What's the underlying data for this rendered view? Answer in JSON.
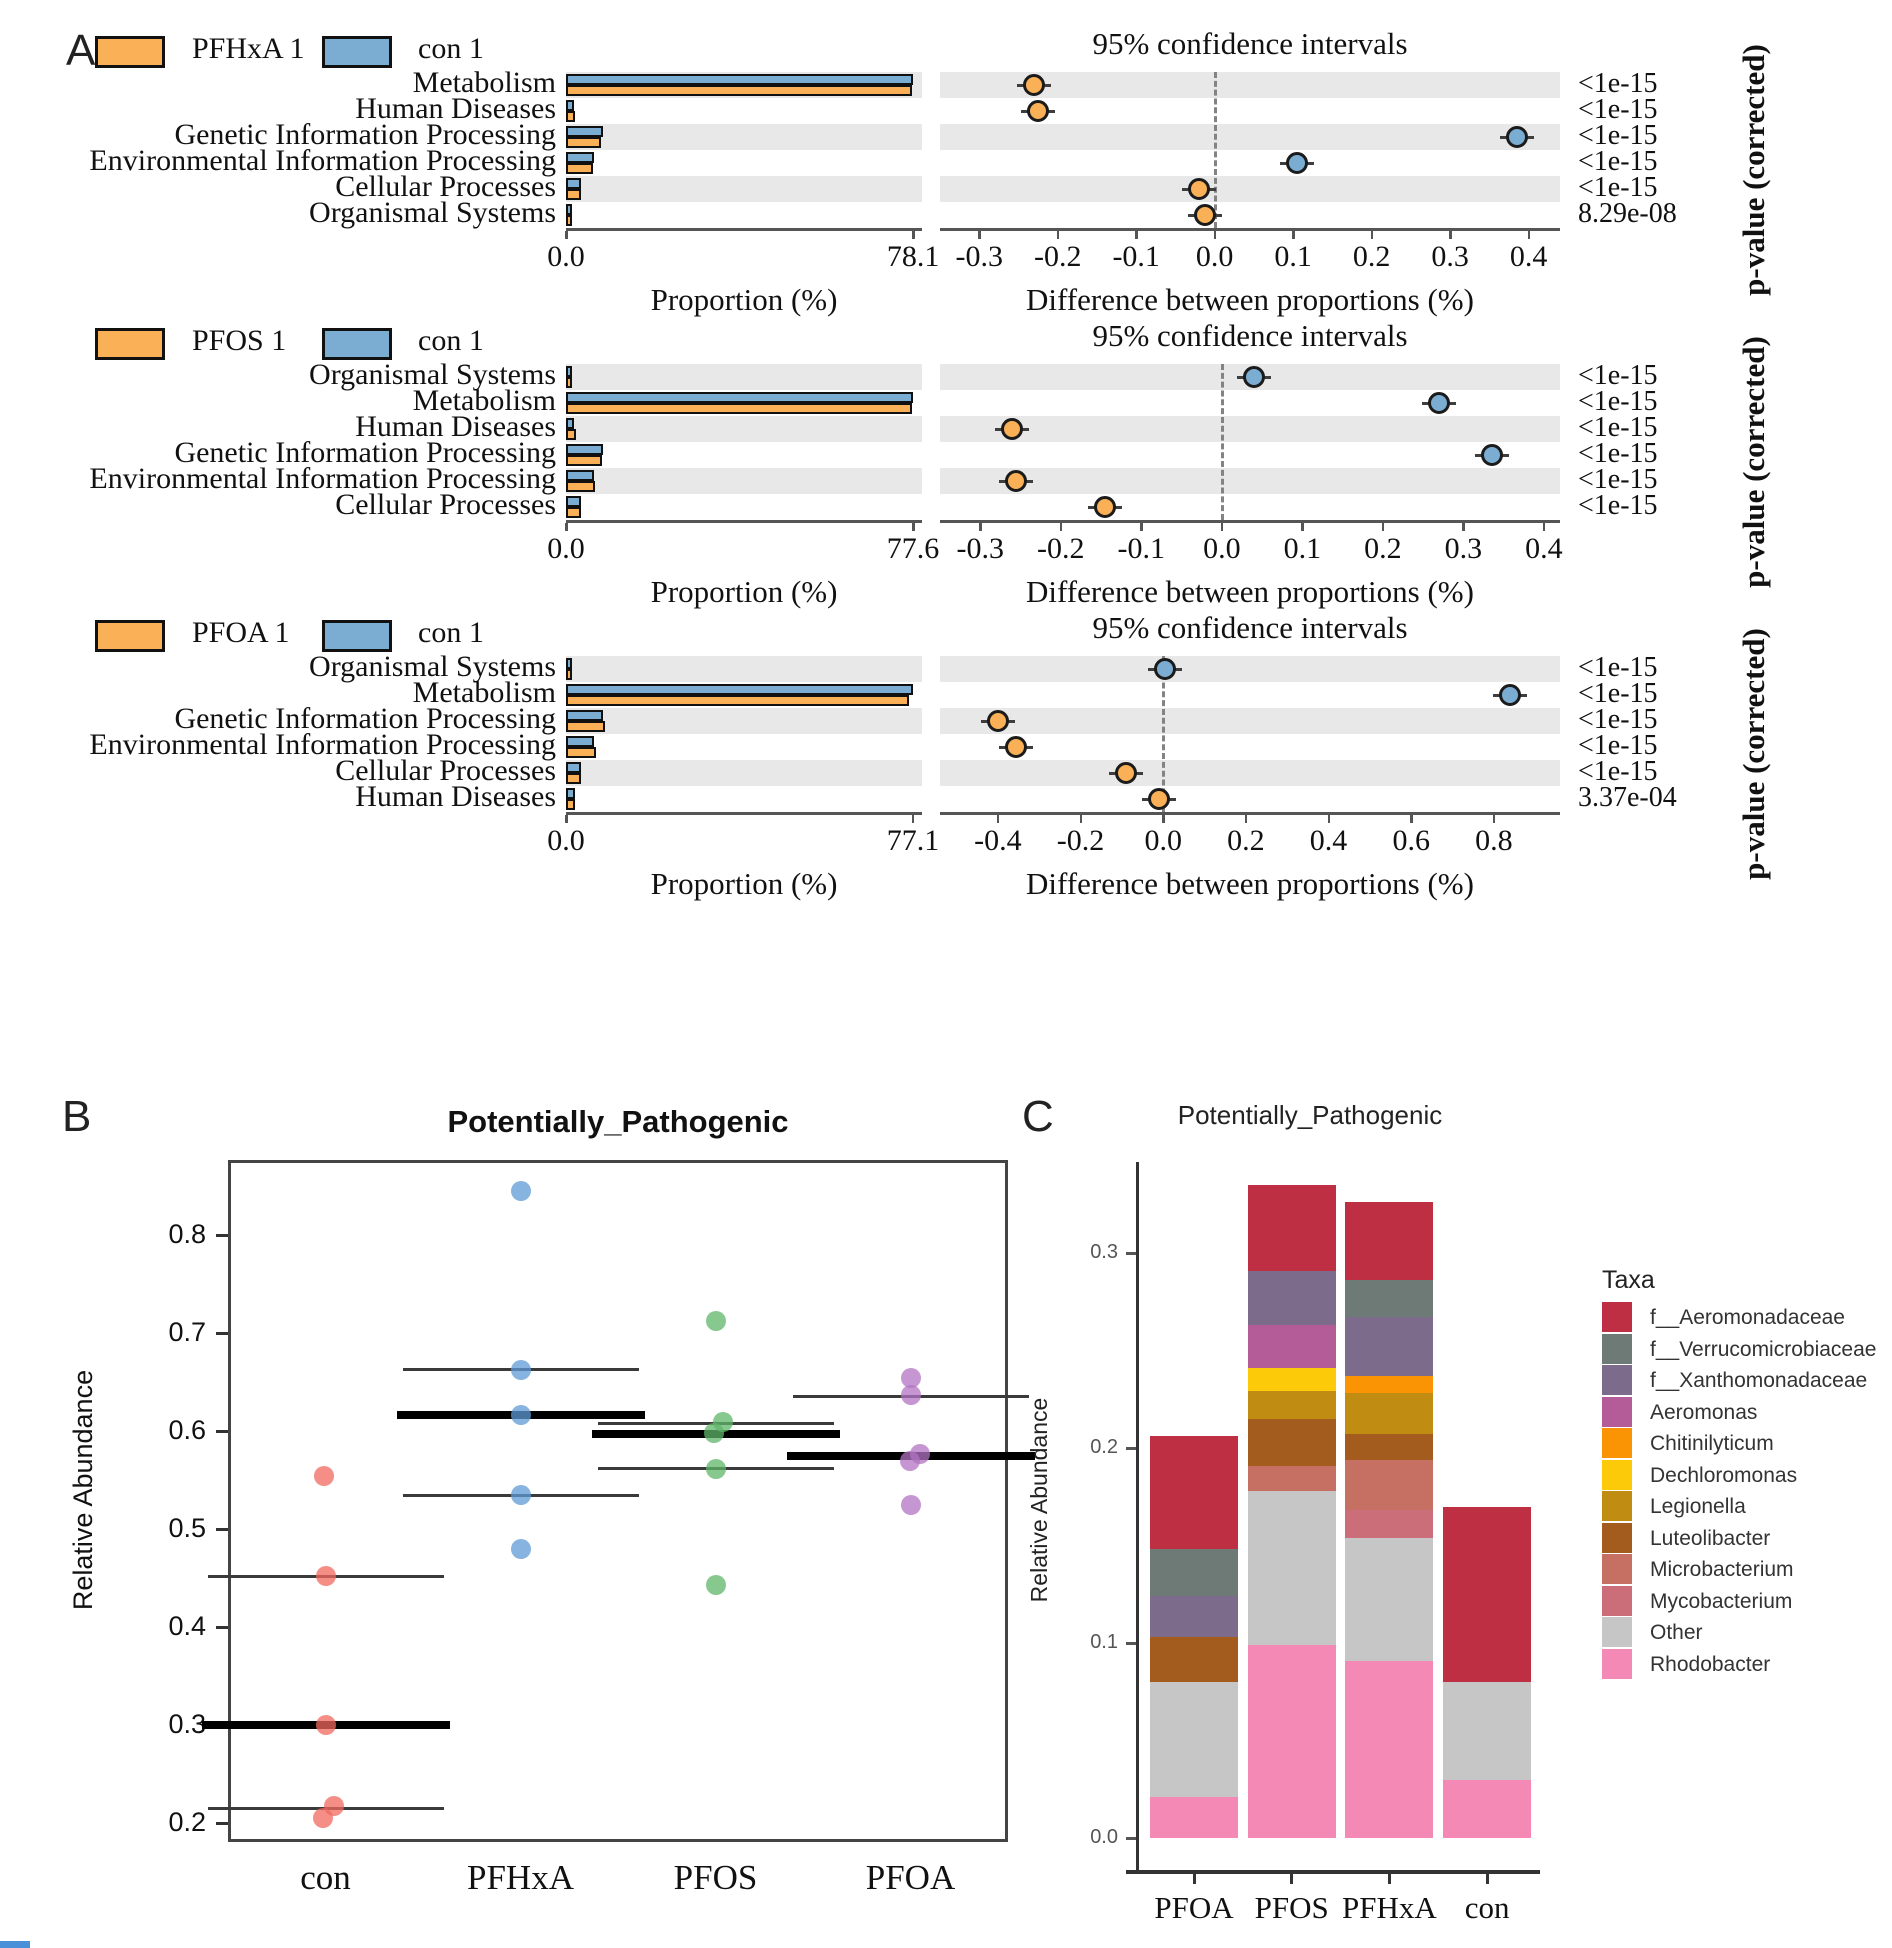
{
  "figure": {
    "panel_labels": {
      "a": "A",
      "b": "B",
      "c": "C"
    },
    "colors_a": {
      "treatment": "#F9B057",
      "control": "#7BADD3",
      "band": "#E8E8E8"
    }
  },
  "chart_data": [
    {
      "id": "A1",
      "type": "bar+dot",
      "treatment_label": "PFHxA 1",
      "control_label": "con 1",
      "ci_title": "95% confidence intervals",
      "prop_title": "Proportion (%)",
      "diff_title": "Difference between proportions (%)",
      "pvalue_label": "p-value (corrected)",
      "categories": [
        "Metabolism",
        "Human Diseases",
        "Genetic Information Processing",
        "Environmental Information Processing",
        "Cellular Processes",
        "Organismal Systems"
      ],
      "control_props": [
        78.1,
        1.9,
        8.3,
        6.2,
        3.3,
        1.3
      ],
      "treatment_props": [
        77.9,
        2.1,
        7.9,
        6.1,
        3.3,
        1.3
      ],
      "diffs": [
        -0.23,
        -0.225,
        0.385,
        0.105,
        -0.02,
        -0.012
      ],
      "enriched": [
        "treatment",
        "treatment",
        "control",
        "control",
        "treatment",
        "treatment"
      ],
      "pvalues": [
        "<1e-15",
        "<1e-15",
        "<1e-15",
        "<1e-15",
        "<1e-15",
        "8.29e-08"
      ],
      "prop_tick_labels": [
        "0.0",
        "78.1"
      ],
      "prop_tick_values": [
        0,
        78.1
      ],
      "prop_scale_max": 80.1,
      "diff_ticks": [
        -0.3,
        -0.2,
        -0.1,
        0.0,
        0.1,
        0.2,
        0.3,
        0.4
      ],
      "diff_range": [
        -0.35,
        0.44
      ]
    },
    {
      "id": "A2",
      "type": "bar+dot",
      "treatment_label": "PFOS 1",
      "control_label": "con 1",
      "ci_title": "95% confidence intervals",
      "prop_title": "Proportion (%)",
      "diff_title": "Difference between proportions (%)",
      "pvalue_label": "p-value (corrected)",
      "categories": [
        "Organismal Systems",
        "Metabolism",
        "Human Diseases",
        "Genetic Information Processing",
        "Environmental Information Processing",
        "Cellular Processes"
      ],
      "control_props": [
        1.3,
        77.6,
        1.9,
        8.3,
        6.2,
        3.3
      ],
      "treatment_props": [
        1.25,
        77.3,
        2.2,
        8.0,
        6.5,
        3.45
      ],
      "diffs": [
        0.04,
        0.27,
        -0.26,
        0.335,
        -0.255,
        -0.145
      ],
      "enriched": [
        "control",
        "control",
        "treatment",
        "control",
        "treatment",
        "treatment"
      ],
      "pvalues": [
        "<1e-15",
        "<1e-15",
        "<1e-15",
        "<1e-15",
        "<1e-15",
        "<1e-15"
      ],
      "prop_tick_labels": [
        "0.0",
        "77.6"
      ],
      "prop_tick_values": [
        0,
        77.6
      ],
      "prop_scale_max": 79.6,
      "diff_ticks": [
        -0.3,
        -0.2,
        -0.1,
        0.0,
        0.1,
        0.2,
        0.3,
        0.4
      ],
      "diff_range": [
        -0.35,
        0.42
      ]
    },
    {
      "id": "A3",
      "type": "bar+dot",
      "treatment_label": "PFOA 1",
      "control_label": "con 1",
      "ci_title": "95% confidence intervals",
      "prop_title": "Proportion (%)",
      "diff_title": "Difference between proportions (%)",
      "pvalue_label": "p-value (corrected)",
      "categories": [
        "Organismal Systems",
        "Metabolism",
        "Genetic Information Processing",
        "Environmental Information Processing",
        "Cellular Processes",
        "Human Diseases"
      ],
      "control_props": [
        1.3,
        77.1,
        8.3,
        6.2,
        3.3,
        1.9
      ],
      "treatment_props": [
        1.3,
        76.3,
        8.7,
        6.6,
        3.4,
        1.9
      ],
      "diffs": [
        0.005,
        0.84,
        -0.4,
        -0.355,
        -0.09,
        -0.01
      ],
      "enriched": [
        "control",
        "control",
        "treatment",
        "treatment",
        "treatment",
        "treatment"
      ],
      "pvalues": [
        "<1e-15",
        "<1e-15",
        "<1e-15",
        "<1e-15",
        "<1e-15",
        "3.37e-04"
      ],
      "prop_tick_labels": [
        "0.0",
        "77.1"
      ],
      "prop_tick_values": [
        0,
        77.1
      ],
      "prop_scale_max": 79.1,
      "diff_ticks": [
        -0.4,
        -0.2,
        0.0,
        0.2,
        0.4,
        0.6,
        0.8
      ],
      "diff_range": [
        -0.54,
        0.96
      ]
    },
    {
      "id": "B",
      "type": "scatter",
      "title": "Potentially_Pathogenic",
      "ylabel": "Relative Abundance",
      "yticks": [
        0.2,
        0.3,
        0.4,
        0.5,
        0.6,
        0.7,
        0.8
      ],
      "ylim": [
        0.181,
        0.877
      ],
      "groups": [
        {
          "name": "con",
          "color": "#F0685E",
          "points": [
            {
              "y": 0.555,
              "dx": -2
            },
            {
              "y": 0.452,
              "dx": 0
            },
            {
              "y": 0.3,
              "dx": 0
            },
            {
              "y": 0.218,
              "dx": 8
            },
            {
              "y": 0.205,
              "dx": -3
            }
          ],
          "lines": [
            {
              "y": 0.452,
              "style": "thin"
            },
            {
              "y": 0.3,
              "style": "thick"
            },
            {
              "y": 0.215,
              "style": "thin"
            }
          ]
        },
        {
          "name": "PFHxA",
          "color": "#5E9AD4",
          "points": [
            {
              "y": 0.845,
              "dx": 0
            },
            {
              "y": 0.663,
              "dx": 0
            },
            {
              "y": 0.617,
              "dx": 0
            },
            {
              "y": 0.535,
              "dx": 0
            },
            {
              "y": 0.48,
              "dx": 0
            }
          ],
          "lines": [
            {
              "y": 0.663,
              "style": "thin"
            },
            {
              "y": 0.617,
              "style": "thick"
            },
            {
              "y": 0.535,
              "style": "thin"
            }
          ]
        },
        {
          "name": "PFOS",
          "color": "#5FB56A",
          "points": [
            {
              "y": 0.713,
              "dx": 0
            },
            {
              "y": 0.61,
              "dx": 7
            },
            {
              "y": 0.598,
              "dx": -2
            },
            {
              "y": 0.562,
              "dx": 0
            },
            {
              "y": 0.443,
              "dx": 0
            }
          ],
          "lines": [
            {
              "y": 0.608,
              "style": "thin"
            },
            {
              "y": 0.597,
              "style": "thick"
            },
            {
              "y": 0.562,
              "style": "thin"
            }
          ]
        },
        {
          "name": "PFOA",
          "color": "#B273C1",
          "points": [
            {
              "y": 0.655,
              "dx": 0
            },
            {
              "y": 0.637,
              "dx": 0
            },
            {
              "y": 0.577,
              "dx": 9
            },
            {
              "y": 0.57,
              "dx": -1
            },
            {
              "y": 0.525,
              "dx": 0
            }
          ],
          "lines": [
            {
              "y": 0.636,
              "style": "thin"
            },
            {
              "y": 0.575,
              "style": "thick"
            }
          ]
        }
      ]
    },
    {
      "id": "C",
      "type": "stacked_bar",
      "title": "Potentially_Pathogenic",
      "ylabel": "Relative Abundance",
      "yticks": [
        0.0,
        0.1,
        0.2,
        0.3
      ],
      "ylim": [
        0,
        0.35
      ],
      "legend_title": "Taxa",
      "taxa": [
        {
          "name": "f__Aeromonadaceae",
          "color": "#BE2F44"
        },
        {
          "name": "f__Verrucomicrobiaceae",
          "color": "#6E7A76"
        },
        {
          "name": "f__Xanthomonadaceae",
          "color": "#7D6B8C"
        },
        {
          "name": "Aeromonas",
          "color": "#B45C97"
        },
        {
          "name": "Chitinilyticum",
          "color": "#FB9404"
        },
        {
          "name": "Dechloromonas",
          "color": "#FCCA09"
        },
        {
          "name": "Legionella",
          "color": "#C08D12"
        },
        {
          "name": "Luteolibacter",
          "color": "#A45B1E"
        },
        {
          "name": "Microbacterium",
          "color": "#C57062"
        },
        {
          "name": "Mycobacterium",
          "color": "#CB6E7A"
        },
        {
          "name": "Other",
          "color": "#C6C6C6"
        },
        {
          "name": "Rhodobacter",
          "color": "#F489B6"
        }
      ],
      "bars": [
        {
          "category": "PFOA",
          "stack": [
            {
              "taxon": "Rhodobacter",
              "value": 0.021
            },
            {
              "taxon": "Other",
              "value": 0.059
            },
            {
              "taxon": "Luteolibacter",
              "value": 0.023
            },
            {
              "taxon": "f__Xanthomonadaceae",
              "value": 0.021
            },
            {
              "taxon": "f__Verrucomicrobiaceae",
              "value": 0.024
            },
            {
              "taxon": "f__Aeromonadaceae",
              "value": 0.058
            }
          ]
        },
        {
          "category": "PFOS",
          "stack": [
            {
              "taxon": "Rhodobacter",
              "value": 0.099
            },
            {
              "taxon": "Other",
              "value": 0.079
            },
            {
              "taxon": "Microbacterium",
              "value": 0.013
            },
            {
              "taxon": "Luteolibacter",
              "value": 0.024
            },
            {
              "taxon": "Legionella",
              "value": 0.014
            },
            {
              "taxon": "Dechloromonas",
              "value": 0.012
            },
            {
              "taxon": "Aeromonas",
              "value": 0.022
            },
            {
              "taxon": "f__Xanthomonadaceae",
              "value": 0.028
            },
            {
              "taxon": "f__Aeromonadaceae",
              "value": 0.044
            }
          ]
        },
        {
          "category": "PFHxA",
          "stack": [
            {
              "taxon": "Rhodobacter",
              "value": 0.091
            },
            {
              "taxon": "Other",
              "value": 0.063
            },
            {
              "taxon": "Mycobacterium",
              "value": 0.014
            },
            {
              "taxon": "Microbacterium",
              "value": 0.026
            },
            {
              "taxon": "Luteolibacter",
              "value": 0.013
            },
            {
              "taxon": "Legionella",
              "value": 0.021
            },
            {
              "taxon": "Chitinilyticum",
              "value": 0.009
            },
            {
              "taxon": "f__Xanthomonadaceae",
              "value": 0.03
            },
            {
              "taxon": "f__Verrucomicrobiaceae",
              "value": 0.019
            },
            {
              "taxon": "f__Aeromonadaceae",
              "value": 0.04
            }
          ]
        },
        {
          "category": "con",
          "stack": [
            {
              "taxon": "Rhodobacter",
              "value": 0.03
            },
            {
              "taxon": "Other",
              "value": 0.05
            },
            {
              "taxon": "f__Aeromonadaceae",
              "value": 0.09
            }
          ]
        }
      ]
    }
  ]
}
